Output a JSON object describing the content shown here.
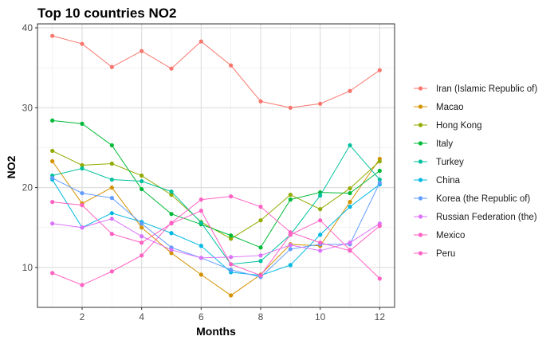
{
  "chart_data": {
    "type": "line",
    "title": "Top 10 countries NO2",
    "xlabel": "Months",
    "ylabel": "NO2",
    "xlim": [
      0.5,
      12.5
    ],
    "ylim": [
      5,
      40.5
    ],
    "x": [
      1,
      2,
      3,
      4,
      5,
      6,
      7,
      8,
      9,
      10,
      11,
      12
    ],
    "x_ticks": [
      2,
      4,
      6,
      8,
      10,
      12
    ],
    "y_ticks": [
      10,
      20,
      30,
      40
    ],
    "grid": true,
    "legend_position": "right",
    "series": [
      {
        "name": "Iran (Islamic Republic of)",
        "color": "#F8766D",
        "values": [
          39.0,
          38.0,
          35.1,
          37.1,
          34.9,
          38.3,
          35.3,
          30.8,
          30.0,
          30.5,
          32.1,
          34.7
        ]
      },
      {
        "name": "Macao",
        "color": "#D39200",
        "values": [
          23.3,
          18.0,
          20.0,
          15.0,
          11.8,
          9.1,
          6.5,
          9.1,
          12.9,
          12.7,
          18.2,
          23.6
        ]
      },
      {
        "name": "Hong Kong",
        "color": "#93AA00",
        "values": [
          24.6,
          22.8,
          23.0,
          21.5,
          19.1,
          15.7,
          13.6,
          15.9,
          19.1,
          17.3,
          19.9,
          23.3
        ]
      },
      {
        "name": "Italy",
        "color": "#00BA38",
        "values": [
          28.4,
          28.0,
          25.3,
          19.8,
          16.7,
          15.4,
          14.0,
          12.5,
          18.5,
          19.4,
          19.3,
          22.1
        ]
      },
      {
        "name": "Turkey",
        "color": "#00C19F",
        "values": [
          21.5,
          22.4,
          21.0,
          20.8,
          19.5,
          15.6,
          10.4,
          10.8,
          14.1,
          19.0,
          25.3,
          21.0
        ]
      },
      {
        "name": "China",
        "color": "#00B9E3",
        "values": [
          21.0,
          15.0,
          16.8,
          15.7,
          14.3,
          12.7,
          9.4,
          9.0,
          10.3,
          14.1,
          17.6,
          20.4
        ]
      },
      {
        "name": "Korea (the Republic of)",
        "color": "#619CFF",
        "values": [
          21.2,
          19.3,
          18.7,
          15.5,
          12.5,
          11.2,
          9.7,
          8.8,
          12.3,
          12.9,
          12.9,
          20.6
        ]
      },
      {
        "name": "Russian Federation (the)",
        "color": "#DB72FB",
        "values": [
          15.5,
          15.0,
          16.1,
          13.9,
          12.2,
          11.2,
          11.3,
          11.5,
          12.8,
          12.1,
          13.1,
          15.5
        ]
      },
      {
        "name": "Mexico",
        "color": "#FF61C3",
        "values": [
          18.2,
          17.8,
          14.2,
          13.1,
          15.5,
          17.1,
          10.4,
          9.0,
          14.1,
          15.9,
          12.2,
          8.6
        ]
      },
      {
        "name": "Peru",
        "color": "#FF61C3",
        "values": [
          9.3,
          7.8,
          9.5,
          11.5,
          15.6,
          18.5,
          18.9,
          17.6,
          14.4,
          13.1,
          12.1,
          15.2
        ]
      }
    ]
  }
}
